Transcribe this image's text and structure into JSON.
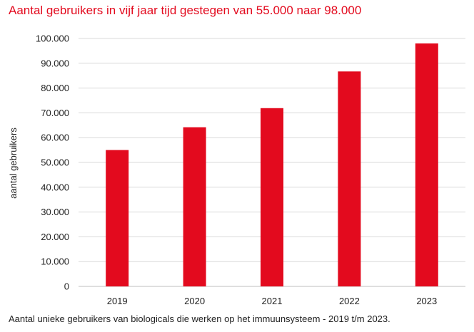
{
  "chart_data": {
    "type": "bar",
    "title": "Aantal gebruikers in vijf jaar tijd gestegen van 55.000 naar 98.000",
    "caption": "Aantal unieke gebruikers van biologicals die werken op het immuunsysteem - 2019 t/m 2023.",
    "ylabel": "aantal gebruikers",
    "xlabel": "",
    "categories": [
      "2019",
      "2020",
      "2021",
      "2022",
      "2023"
    ],
    "values": [
      55000,
      64200,
      71900,
      86700,
      98000
    ],
    "ylim": [
      0,
      100000
    ],
    "yticks": [
      0,
      10000,
      20000,
      30000,
      40000,
      50000,
      60000,
      70000,
      80000,
      90000,
      100000
    ],
    "ytick_labels": [
      "0",
      "10.000",
      "20.000",
      "30.000",
      "40.000",
      "50.000",
      "60.000",
      "70.000",
      "80.000",
      "90.000",
      "100.000"
    ],
    "grid": true,
    "bar_color": "#e30a1e",
    "grid_color": "#d9d9d9",
    "title_color": "#e30a1e"
  }
}
